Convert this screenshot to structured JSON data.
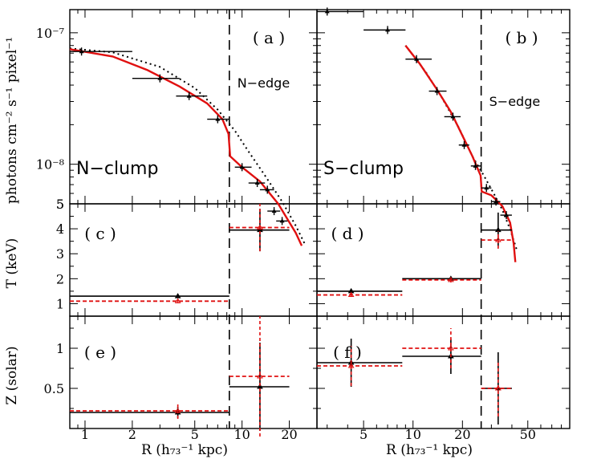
{
  "chart_data": {
    "type": "multi-panel scatter with error bars and model curves",
    "ylabel_top": "photons cm⁻² s⁻¹ pixel⁻¹",
    "ylabel_T": "T (keV)",
    "ylabel_Z": "Z (solar)",
    "xlabel": "R (h₇₃⁻¹ kpc)",
    "left": {
      "xlim": [
        0.8,
        30
      ],
      "xscale": "log",
      "xticks": [
        1,
        2,
        5,
        10,
        20
      ],
      "edge_R": 8.3,
      "panel_a": {
        "label": "( a )",
        "region": "N−clump",
        "edge": "N−edge",
        "ylim": [
          5e-09,
          1.5e-07
        ],
        "yscale": "log",
        "yticks": [
          {
            "v": 1e-07,
            "label": "10⁻⁷"
          },
          {
            "v": 1e-08,
            "label": "10⁻⁸"
          },
          {
            "v": 5e-09,
            "label": "5"
          }
        ],
        "points": [
          {
            "x": 0.95,
            "y": 7.2e-08,
            "xlo": 0.8,
            "xhi": 2.0
          },
          {
            "x": 3.0,
            "y": 4.5e-08,
            "xlo": 2.0,
            "xhi": 4.0
          },
          {
            "x": 4.6,
            "y": 3.3e-08,
            "xlo": 3.8,
            "xhi": 6.0
          },
          {
            "x": 7.0,
            "y": 2.2e-08,
            "xlo": 6.0,
            "xhi": 8.3
          },
          {
            "x": 10.0,
            "y": 9.5e-09,
            "xlo": 9.0,
            "xhi": 11.5
          },
          {
            "x": 12.5,
            "y": 7.2e-09,
            "xlo": 11.0,
            "xhi": 14.0
          },
          {
            "x": 14.5,
            "y": 6.4e-09,
            "xlo": 13.0,
            "xhi": 16.0
          },
          {
            "x": 16.0,
            "y": 4.4e-09,
            "xlo": 14.5,
            "xhi": 17.5
          },
          {
            "x": 18.0,
            "y": 3.7e-09,
            "xlo": 16.5,
            "xhi": 19.5
          }
        ],
        "model_solid": [
          [
            0.8,
            7.5e-08
          ],
          [
            1.5,
            6.6e-08
          ],
          [
            2.5,
            5.2e-08
          ],
          [
            4,
            3.9e-08
          ],
          [
            6,
            2.9e-08
          ],
          [
            7.5,
            2.2e-08
          ],
          [
            8.2,
            1.7e-08
          ],
          [
            8.4,
            1.15e-08
          ],
          [
            10,
            9.5e-09
          ],
          [
            13,
            7.4e-09
          ],
          [
            17,
            5e-09
          ],
          [
            22,
            3e-09
          ],
          [
            24,
            2.4e-09
          ]
        ],
        "model_dotted": [
          [
            0.8,
            7.6e-08
          ],
          [
            1.5,
            7.1e-08
          ],
          [
            3,
            5.5e-08
          ],
          [
            5,
            3.8e-08
          ],
          [
            7,
            2.6e-08
          ],
          [
            9,
            1.8e-08
          ],
          [
            11,
            1.25e-08
          ],
          [
            14,
            8.2e-09
          ],
          [
            18,
            5.2e-09
          ],
          [
            22,
            3.4e-09
          ],
          [
            25,
            2.5e-09
          ]
        ]
      },
      "panel_c": {
        "label": "( c )",
        "ylim": [
          0.5,
          5
        ],
        "yticks": [
          1,
          2,
          3,
          4,
          5
        ],
        "points": [
          {
            "x": 3.9,
            "y": 1.3,
            "xlo": 0.8,
            "xhi": 8.3,
            "yerr": 0.07,
            "series": "black"
          },
          {
            "x": 3.9,
            "y": 1.1,
            "xlo": 0.8,
            "xhi": 8.3,
            "yerr": 0.08,
            "series": "red"
          },
          {
            "x": 13.0,
            "y": 3.95,
            "xlo": 8.3,
            "xhi": 20.0,
            "yerr": 0.85,
            "series": "black"
          },
          {
            "x": 13.0,
            "y": 4.05,
            "xlo": 8.3,
            "xhi": 20.0,
            "yerr": 0.95,
            "series": "red"
          }
        ]
      },
      "panel_e": {
        "label": "( e )",
        "ylim": [
          0,
          1.4
        ],
        "yticks": [
          0.5,
          1
        ],
        "points": [
          {
            "x": 3.9,
            "y": 0.2,
            "xlo": 0.8,
            "xhi": 8.3,
            "yerr": 0.07,
            "series": "black"
          },
          {
            "x": 3.9,
            "y": 0.22,
            "xlo": 0.8,
            "xhi": 8.3,
            "yerr": 0.1,
            "series": "red"
          },
          {
            "x": 13.0,
            "y": 0.52,
            "xlo": 8.3,
            "xhi": 20.0,
            "yerr": 0.55,
            "series": "black"
          },
          {
            "x": 13.0,
            "y": 0.65,
            "xlo": 8.3,
            "xhi": 20.0,
            "yerr": 0.75,
            "series": "red"
          }
        ]
      }
    },
    "right": {
      "xlim": [
        2.6,
        90
      ],
      "xscale": "log",
      "xticks": [
        5,
        10,
        20,
        50
      ],
      "edge_R": 26,
      "panel_b": {
        "label": "( b )",
        "region": "S−clump",
        "edge": "S−edge",
        "ylim": [
          5e-09,
          1.5e-07
        ],
        "yscale": "log",
        "points": [
          {
            "x": 3.0,
            "y": 1.45e-07,
            "xlo": 2.6,
            "xhi": 5.0
          },
          {
            "x": 7.0,
            "y": 1.05e-07,
            "xlo": 5.0,
            "xhi": 9.0
          },
          {
            "x": 10.5,
            "y": 6.3e-08,
            "xlo": 9.0,
            "xhi": 13.0
          },
          {
            "x": 14.0,
            "y": 3.6e-08,
            "xlo": 12.5,
            "xhi": 16.0
          },
          {
            "x": 17.5,
            "y": 2.3e-08,
            "xlo": 15.5,
            "xhi": 19.5
          },
          {
            "x": 20.5,
            "y": 1.4e-08,
            "xlo": 19.0,
            "xhi": 22.0
          },
          {
            "x": 24.0,
            "y": 9.7e-09,
            "xlo": 22.5,
            "xhi": 26.0
          },
          {
            "x": 28.0,
            "y": 6.6e-09,
            "xlo": 26.0,
            "xhi": 30.0
          },
          {
            "x": 32.0,
            "y": 5.2e-09,
            "xlo": 30.0,
            "xhi": 34.0
          },
          {
            "x": 37.0,
            "y": 4.1e-09,
            "xlo": 34.0,
            "xhi": 40.0
          }
        ],
        "model_solid": [
          [
            9,
            8e-08
          ],
          [
            11,
            5.8e-08
          ],
          [
            14,
            3.7e-08
          ],
          [
            17,
            2.5e-08
          ],
          [
            20,
            1.65e-08
          ],
          [
            23,
            1.15e-08
          ],
          [
            25.8,
            8.2e-09
          ],
          [
            26.2,
            6.2e-09
          ],
          [
            30,
            5.8e-09
          ],
          [
            35,
            4.8e-09
          ],
          [
            39,
            3.6e-09
          ],
          [
            41,
            2.5e-09
          ],
          [
            42,
            1.8e-09
          ]
        ],
        "model_dotted": [
          [
            9,
            8e-08
          ],
          [
            12,
            5e-08
          ],
          [
            15,
            3.2e-08
          ],
          [
            19,
            1.9e-08
          ],
          [
            23,
            1.15e-08
          ],
          [
            27,
            8.2e-09
          ],
          [
            31,
            6e-09
          ],
          [
            35,
            4.5e-09
          ],
          [
            39,
            3.2e-09
          ],
          [
            43,
            2.2e-09
          ]
        ]
      },
      "panel_d": {
        "label": "( d )",
        "ylim": [
          0.5,
          5
        ],
        "points": [
          {
            "x": 4.2,
            "y": 1.5,
            "xlo": 2.6,
            "xhi": 8.6,
            "yerr": 0.07,
            "series": "black"
          },
          {
            "x": 4.2,
            "y": 1.35,
            "xlo": 2.6,
            "xhi": 8.6,
            "yerr": 0.08,
            "series": "red"
          },
          {
            "x": 17.0,
            "y": 2.0,
            "xlo": 8.6,
            "xhi": 26.0,
            "yerr": 0.08,
            "series": "black"
          },
          {
            "x": 17.0,
            "y": 1.95,
            "xlo": 8.6,
            "xhi": 26.0,
            "yerr": 0.1,
            "series": "red"
          },
          {
            "x": 33.0,
            "y": 3.95,
            "xlo": 26.0,
            "xhi": 40.0,
            "yerr": 0.7,
            "series": "black"
          },
          {
            "x": 33.0,
            "y": 3.55,
            "xlo": 26.0,
            "xhi": 40.0,
            "yerr": 0.35,
            "series": "red"
          }
        ]
      },
      "panel_f": {
        "label": "( f )",
        "ylim": [
          0,
          1.4
        ],
        "points": [
          {
            "x": 4.2,
            "y": 0.82,
            "xlo": 2.6,
            "xhi": 8.6,
            "yerr": 0.3,
            "series": "black"
          },
          {
            "x": 4.2,
            "y": 0.78,
            "xlo": 2.6,
            "xhi": 8.6,
            "yerr": 0.25,
            "series": "red"
          },
          {
            "x": 17.0,
            "y": 0.9,
            "xlo": 8.6,
            "xhi": 26.0,
            "yerr": 0.22,
            "series": "black"
          },
          {
            "x": 17.0,
            "y": 1.0,
            "xlo": 8.6,
            "xhi": 26.0,
            "yerr": 0.25,
            "series": "red"
          },
          {
            "x": 33.0,
            "y": 0.5,
            "xlo": 26.0,
            "xhi": 40.0,
            "yerr": 0.45,
            "series": "black"
          },
          {
            "x": 33.0,
            "y": 0.5,
            "xlo": 26.0,
            "xhi": 40.0,
            "yerr": 0.35,
            "series": "red"
          }
        ]
      }
    },
    "colors": {
      "observed": "#000000",
      "model": "#e01010",
      "alt": "#e01010"
    }
  }
}
